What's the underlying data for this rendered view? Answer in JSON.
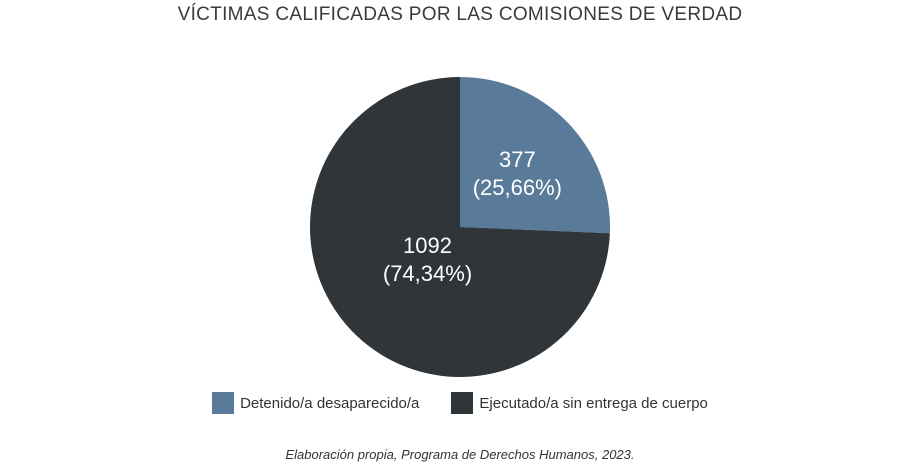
{
  "chart_data": {
    "type": "pie",
    "title": "VÍCTIMAS CALIFICADAS POR LAS COMISIONES DE VERDAD",
    "categories": [
      "Detenido/a desaparecido/a",
      "Ejecutado/a sin entrega de cuerpo"
    ],
    "values": [
      377,
      1092
    ],
    "value_labels": [
      "377",
      "1092"
    ],
    "percent_labels": [
      "(25,66%)",
      "(74,34%)"
    ],
    "colors": [
      "#5a7a99",
      "#2f3539"
    ],
    "legend_position": "bottom"
  },
  "source": "Elaboración propia, Programa de Derechos Humanos, 2023."
}
